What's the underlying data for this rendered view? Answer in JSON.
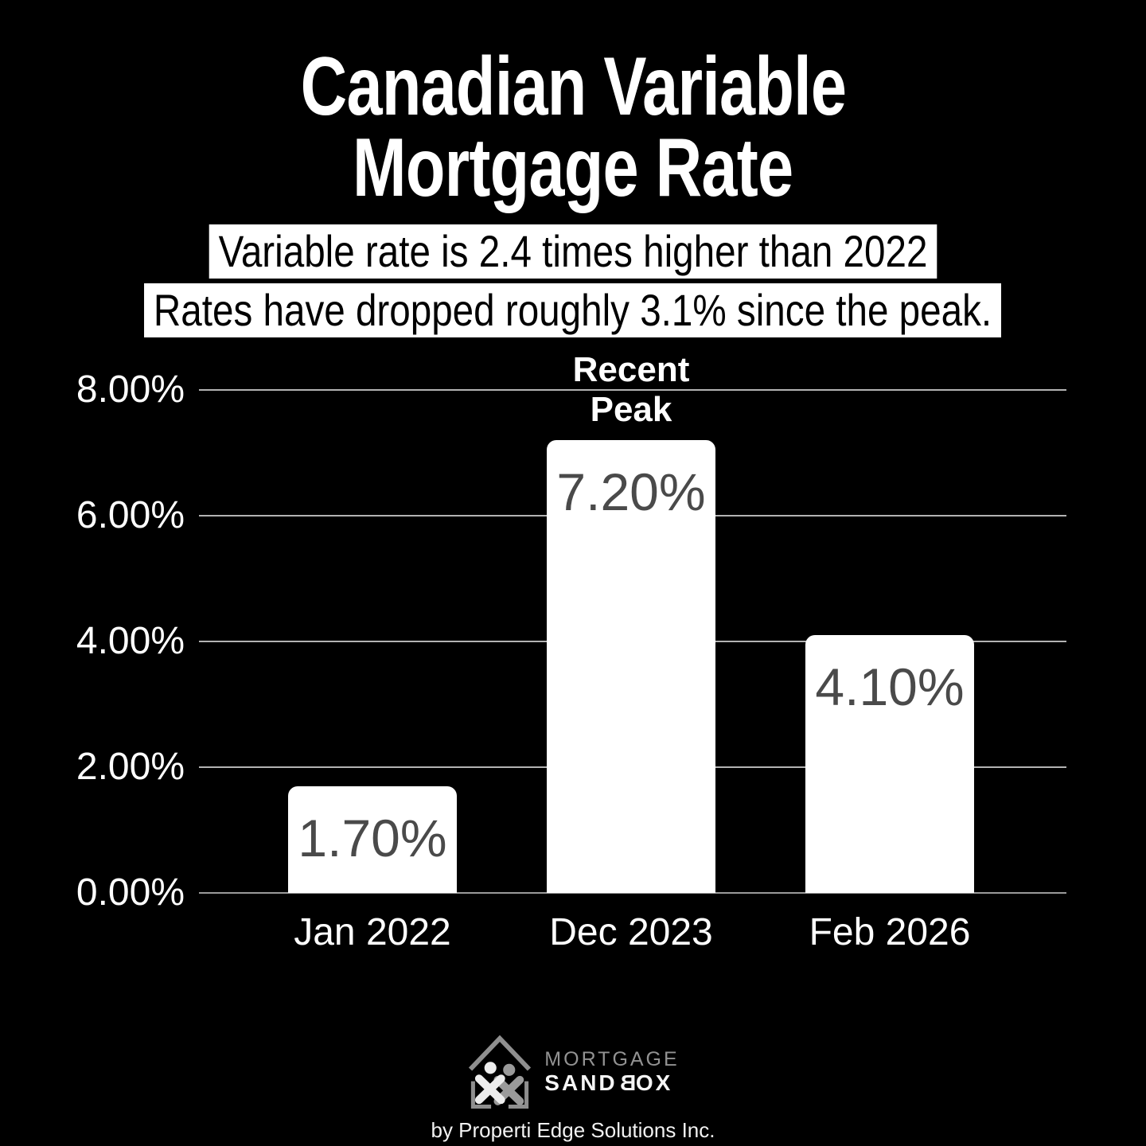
{
  "title": {
    "line1": "Canadian Variable",
    "line2": "Mortgage Rate"
  },
  "subtitles": [
    "Variable rate is 2.4 times higher than 2022",
    "Rates have dropped roughly 3.1% since the peak."
  ],
  "chart_data": {
    "type": "bar",
    "title": "Canadian Variable Mortgage Rate",
    "categories": [
      "Jan 2022",
      "Dec 2023",
      "Feb 2026"
    ],
    "values": [
      1.7,
      7.2,
      4.1
    ],
    "value_labels": [
      "1.70%",
      "7.20%",
      "4.10%"
    ],
    "xlabel": "",
    "ylabel": "",
    "ylim": [
      0,
      8
    ],
    "ytick_values": [
      0,
      2,
      4,
      6,
      8
    ],
    "ytick_labels": [
      "0.00%",
      "2.00%",
      "4.00%",
      "6.00%",
      "8.00%"
    ],
    "grid": "horizontal",
    "legend": "none",
    "bar_color": "#ffffff",
    "value_label_color": "#4a4a4a",
    "background_color": "#000000",
    "annotation": {
      "lines": [
        "Recent",
        "Peak"
      ],
      "target_category": "Dec 2023",
      "target_index": 1
    }
  },
  "logo": {
    "brand_line1": "MORTGAGE",
    "brand_line2_pre": "SAND",
    "brand_line2_mirrored": "B",
    "brand_line2_post": "OX",
    "tagline": "by Properti Edge Solutions Inc.",
    "icon": "mortgage-sandbox-house-figures-icon"
  }
}
